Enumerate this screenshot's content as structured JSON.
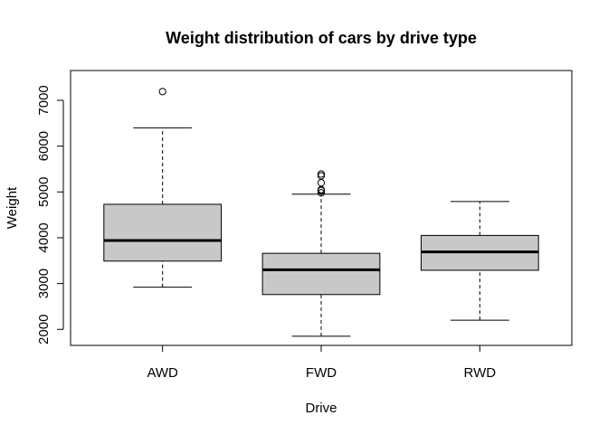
{
  "chart_data": {
    "type": "boxplot",
    "title": "Weight distribution of cars by drive type",
    "xlabel": "Drive",
    "ylabel": "Weight",
    "ylim": [
      1650,
      7650
    ],
    "yticks": [
      2000,
      3000,
      4000,
      5000,
      6000,
      7000
    ],
    "grid": false,
    "categories": [
      "AWD",
      "FWD",
      "RWD"
    ],
    "boxes": [
      {
        "category": "AWD",
        "whisker_low": 2920,
        "q1": 3490,
        "median": 3940,
        "q3": 4730,
        "whisker_high": 6400,
        "outliers": [
          7190
        ]
      },
      {
        "category": "FWD",
        "whisker_low": 1850,
        "q1": 2760,
        "median": 3300,
        "q3": 3660,
        "whisker_high": 4950,
        "outliers": [
          4980,
          5030,
          5050,
          5200,
          5350,
          5390
        ]
      },
      {
        "category": "RWD",
        "whisker_low": 2200,
        "q1": 3290,
        "median": 3690,
        "q3": 4050,
        "whisker_high": 4790,
        "outliers": []
      }
    ],
    "colors": {
      "box_fill": "#c8c8c8",
      "stroke": "#000000",
      "background": "#ffffff"
    }
  }
}
